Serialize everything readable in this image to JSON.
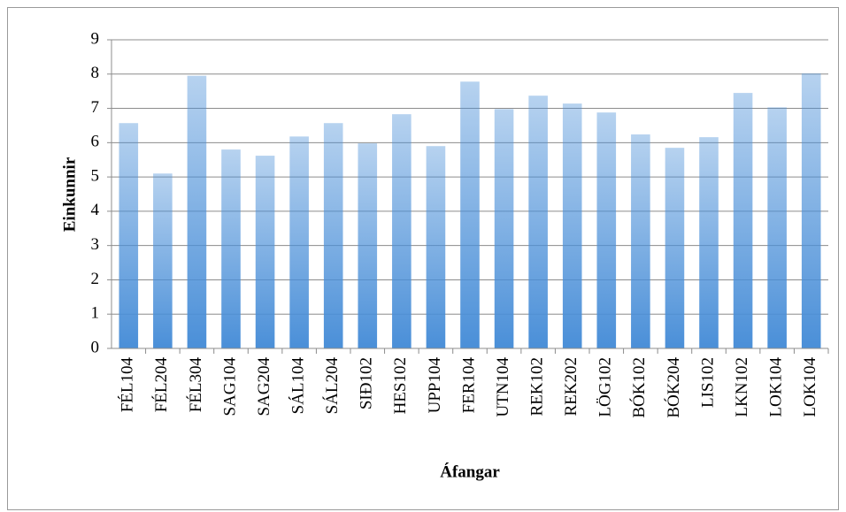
{
  "chart_data": {
    "type": "bar",
    "y_label": "Einkunnir",
    "x_label": "Áfangar",
    "categories": [
      "FÉL104",
      "FÉL204",
      "FÉL304",
      "SAG104",
      "SAG204",
      "SÁL104",
      "SÁL204",
      "SIÐ102",
      "HES102",
      "UPP104",
      "FER104",
      "UTN104",
      "REK102",
      "REK202",
      "LÖG102",
      "BÓK102",
      "BÓK204",
      "LIS102",
      "LKN102",
      "LOK104",
      "LOK104"
    ],
    "values": [
      6.57,
      5.1,
      7.95,
      5.8,
      5.62,
      6.18,
      6.57,
      5.98,
      6.83,
      5.9,
      7.78,
      6.98,
      7.37,
      7.14,
      6.88,
      6.24,
      5.85,
      6.16,
      7.45,
      7.03,
      8.02
    ],
    "color": "#4a8fd8",
    "ylim": [
      0,
      9
    ],
    "yticks": [
      0,
      1,
      2,
      3,
      4,
      5,
      6,
      7,
      8,
      9
    ],
    "grid": true
  }
}
